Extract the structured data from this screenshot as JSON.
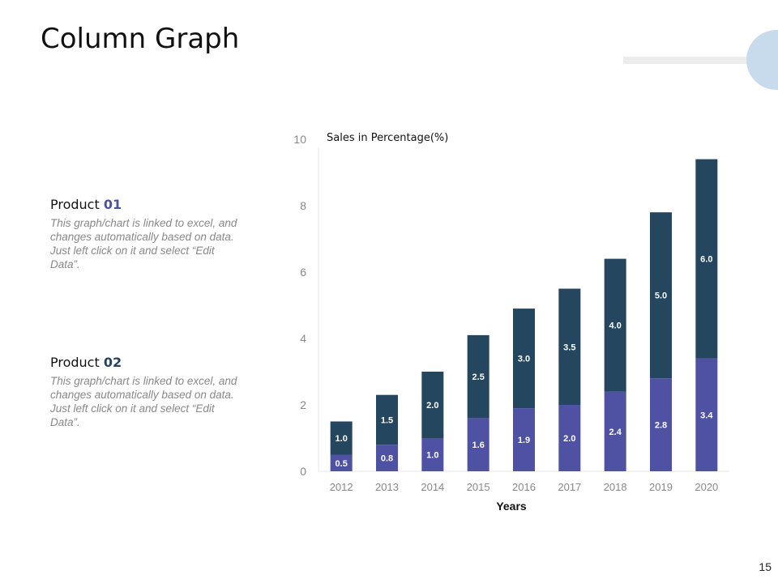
{
  "slide": {
    "title": "Column Graph",
    "page_number": "15"
  },
  "products": [
    {
      "label": "Product ",
      "number": "01",
      "description": "This graph/chart is linked to excel, and changes automatically based on data.  Just left click on it and select “Edit Data”."
    },
    {
      "label": "Product ",
      "number": "02",
      "description": "This graph/chart is linked to excel, and changes automatically based on data.  Just left click on it and select “Edit Data”."
    }
  ],
  "colors": {
    "product_01": "#4f52a3",
    "product_02": "#24465f",
    "deco_circle": "#c8dbec"
  },
  "chart_data": {
    "type": "bar",
    "stacked": true,
    "title": "Sales in Percentage(%)",
    "xlabel": "Years",
    "ylabel": "",
    "categories": [
      "2012",
      "2013",
      "2014",
      "2015",
      "2016",
      "2017",
      "2018",
      "2019",
      "2020"
    ],
    "series": [
      {
        "values": [
          0.5,
          0.8,
          1.0,
          1.6,
          1.9,
          2.0,
          2.4,
          2.8,
          3.4
        ]
      },
      {
        "values": [
          1.0,
          1.5,
          2.0,
          2.5,
          3.0,
          3.5,
          4.0,
          5.0,
          6.0
        ]
      }
    ],
    "data_labels": [
      [
        "0.5",
        "0.8",
        "1.0",
        "1.6",
        "1.9",
        "2.0",
        "2.4",
        "2.8",
        "3.4"
      ],
      [
        "1.0",
        "1.5",
        "2.0",
        "2.5",
        "3.0",
        "3.5",
        "4.0",
        "5.0",
        "6.0"
      ]
    ],
    "ylim": [
      0,
      10
    ],
    "yticks": [
      "0",
      "2",
      "4",
      "6",
      "8",
      "10"
    ],
    "grid": false,
    "legend": "none"
  }
}
